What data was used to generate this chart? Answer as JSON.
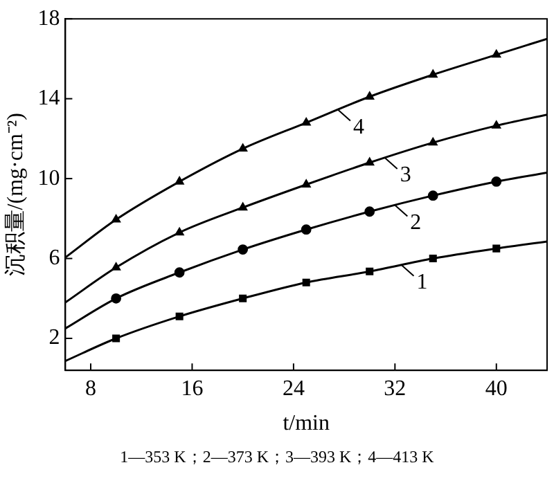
{
  "chart_data": {
    "type": "line",
    "xlabel": "t/min",
    "ylabel": "沉积量/(mg·cm⁻²)",
    "xlim": [
      6,
      44
    ],
    "ylim": [
      0.4,
      18
    ],
    "xticks": [
      8,
      16,
      24,
      32,
      40
    ],
    "yticks": [
      2,
      6,
      10,
      14,
      18
    ],
    "grid": false,
    "legend": false,
    "line_style": "solid",
    "series": [
      {
        "marker": "none",
        "color": "#000000",
        "x": [
          6,
          10,
          15,
          20,
          25,
          30,
          35,
          40,
          44
        ],
        "values": [
          0.87,
          2.0,
          3.1,
          4.0,
          4.8,
          5.35,
          6.0,
          6.5,
          6.85
        ]
      },
      {
        "marker": "none",
        "color": "#000000",
        "x": [
          6,
          10,
          15,
          20,
          25,
          30,
          35,
          40,
          44
        ],
        "values": [
          2.5,
          4.0,
          5.3,
          6.45,
          7.45,
          8.35,
          9.15,
          9.85,
          10.3
        ]
      },
      {
        "marker": "none",
        "color": "#000000",
        "x": [
          6,
          10,
          15,
          20,
          25,
          30,
          35,
          40,
          44
        ],
        "values": [
          3.8,
          5.55,
          7.3,
          8.55,
          9.7,
          10.8,
          11.8,
          12.65,
          13.2
        ]
      },
      {
        "marker": "none",
        "color": "#000000",
        "x": [
          6,
          10,
          15,
          20,
          25,
          30,
          35,
          40,
          44
        ],
        "values": [
          6.05,
          7.95,
          9.85,
          11.5,
          12.8,
          14.1,
          15.2,
          16.2,
          17.0
        ]
      },
      {
        "type": "scatter",
        "marker": "square",
        "color": "#000000",
        "x": [
          10,
          15,
          20,
          25,
          30,
          35,
          40
        ],
        "values": [
          2.0,
          3.1,
          4.0,
          4.8,
          5.35,
          6.0,
          6.5
        ]
      },
      {
        "type": "scatter",
        "marker": "circle",
        "color": "#000000",
        "x": [
          10,
          15,
          20,
          25,
          30,
          35,
          40
        ],
        "values": [
          4.0,
          5.3,
          6.45,
          7.45,
          8.35,
          9.15,
          9.85
        ]
      },
      {
        "type": "scatter",
        "marker": "triangle",
        "color": "#000000",
        "x": [
          10,
          15,
          20,
          25,
          30,
          35,
          40
        ],
        "values": [
          5.55,
          7.3,
          8.55,
          9.7,
          10.8,
          11.8,
          12.65
        ]
      },
      {
        "type": "scatter",
        "marker": "triangle",
        "color": "#000000",
        "x": [
          10,
          15,
          20,
          25,
          30,
          35,
          40
        ],
        "values": [
          7.95,
          9.85,
          11.5,
          12.8,
          14.1,
          15.2,
          16.2
        ]
      }
    ],
    "annotations": [
      {
        "text": "1",
        "x": 32.5,
        "y": 5.68
      },
      {
        "text": "2",
        "x": 32,
        "y": 8.67
      },
      {
        "text": "3",
        "x": 31.2,
        "y": 11.04
      },
      {
        "text": "4",
        "x": 27.5,
        "y": 13.45
      },
      "1—353 K；2—373 K；3—393 K；4—413 K"
    ]
  }
}
